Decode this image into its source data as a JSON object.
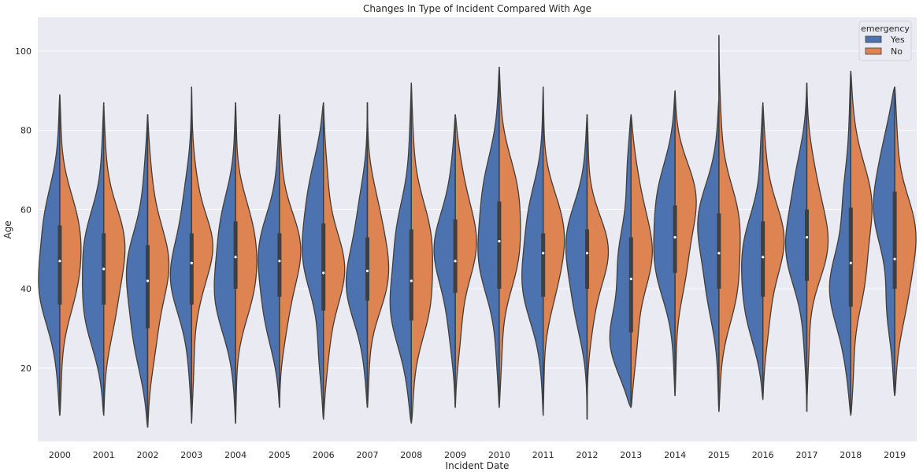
{
  "chart_data": {
    "type": "split-violin",
    "title": "Changes In Type of Incident Compared With Age",
    "xlabel": "Incident Date",
    "ylabel": "Age",
    "ylim": [
      1.5,
      108.5
    ],
    "yticks": [
      20,
      40,
      60,
      80,
      100
    ],
    "grid": true,
    "categories": [
      "2000",
      "2001",
      "2002",
      "2003",
      "2004",
      "2005",
      "2006",
      "2007",
      "2008",
      "2009",
      "2010",
      "2011",
      "2012",
      "2013",
      "2014",
      "2015",
      "2016",
      "2017",
      "2018",
      "2019"
    ],
    "legend": {
      "title": "emergency",
      "placement": "top-right",
      "entries": [
        {
          "label": "Yes",
          "color": "#4c72b0"
        },
        {
          "label": "No",
          "color": "#dd8452"
        }
      ]
    },
    "series": [
      {
        "name": "Yes",
        "color": "#4c72b0",
        "ranges": [
          [
            8,
            89
          ],
          [
            8,
            87
          ],
          [
            5,
            84
          ],
          [
            6,
            91
          ],
          [
            6,
            87
          ],
          [
            10,
            84
          ],
          [
            7,
            87
          ],
          [
            10,
            87
          ],
          [
            6,
            92
          ],
          [
            10,
            84
          ],
          [
            10,
            96
          ],
          [
            8,
            91
          ],
          [
            7,
            84
          ],
          [
            10,
            84
          ],
          [
            13,
            90
          ],
          [
            9,
            88
          ],
          [
            12,
            87
          ],
          [
            9,
            92
          ],
          [
            8,
            95
          ],
          [
            13,
            91
          ]
        ],
        "median": [
          47,
          45,
          42,
          46.5,
          48,
          47,
          44,
          44.5,
          42,
          47,
          52,
          49,
          49,
          42.5,
          53,
          49,
          48,
          53,
          46.5,
          47.5
        ],
        "q1": [
          36,
          36,
          30,
          36,
          40,
          38,
          34.5,
          37,
          32,
          39,
          40,
          38,
          40,
          29,
          44,
          40,
          38,
          42,
          35.5,
          40
        ],
        "q3": [
          56,
          54,
          51,
          54,
          57,
          54,
          56.5,
          53,
          55,
          57.5,
          62,
          54,
          55,
          53,
          61,
          59,
          57,
          60,
          60.5,
          64.5
        ],
        "peak": [
          45,
          40,
          38,
          44,
          42,
          42,
          58,
          42,
          38,
          50,
          55,
          45,
          48,
          25,
          55,
          55,
          40,
          55,
          38,
          68
        ],
        "spread": [
          14,
          14,
          15,
          12,
          14,
          14,
          14,
          13,
          15,
          12,
          14,
          14,
          13,
          10,
          14,
          12,
          12,
          13,
          12,
          14
        ]
      },
      {
        "name": "No",
        "color": "#dd8452",
        "ranges": [
          [
            8,
            89
          ],
          [
            8,
            87
          ],
          [
            5,
            84
          ],
          [
            6,
            91
          ],
          [
            6,
            87
          ],
          [
            10,
            84
          ],
          [
            7,
            87
          ],
          [
            10,
            87
          ],
          [
            6,
            92
          ],
          [
            10,
            84
          ],
          [
            10,
            96
          ],
          [
            8,
            91
          ],
          [
            7,
            84
          ],
          [
            10,
            84
          ],
          [
            13,
            90
          ],
          [
            9,
            104
          ],
          [
            12,
            87
          ],
          [
            9,
            92
          ],
          [
            8,
            95
          ],
          [
            13,
            91
          ]
        ],
        "median": [
          47,
          45,
          42,
          46.5,
          48,
          47,
          44,
          44.5,
          42,
          47,
          52,
          49,
          49,
          42.5,
          53,
          49,
          48,
          53,
          46.5,
          47.5
        ],
        "q1": [
          36,
          36,
          30,
          36,
          40,
          38,
          34.5,
          37,
          32,
          39,
          40,
          38,
          40,
          29,
          44,
          40,
          38,
          42,
          35.5,
          40
        ],
        "q3": [
          56,
          54,
          51,
          54,
          57,
          54,
          56.5,
          53,
          55,
          57.5,
          62,
          54,
          55,
          53,
          61,
          59,
          57,
          60,
          60.5,
          64.5
        ],
        "peak": [
          50,
          48,
          45,
          52,
          47,
          48,
          44,
          48,
          45,
          55,
          58,
          52,
          48,
          52,
          62,
          48,
          52,
          55,
          60,
          50
        ],
        "spread": [
          10,
          12,
          13,
          7,
          10,
          11,
          11,
          11,
          13,
          13,
          12,
          9,
          8,
          13,
          10,
          14,
          11,
          10,
          13,
          11
        ]
      }
    ]
  }
}
